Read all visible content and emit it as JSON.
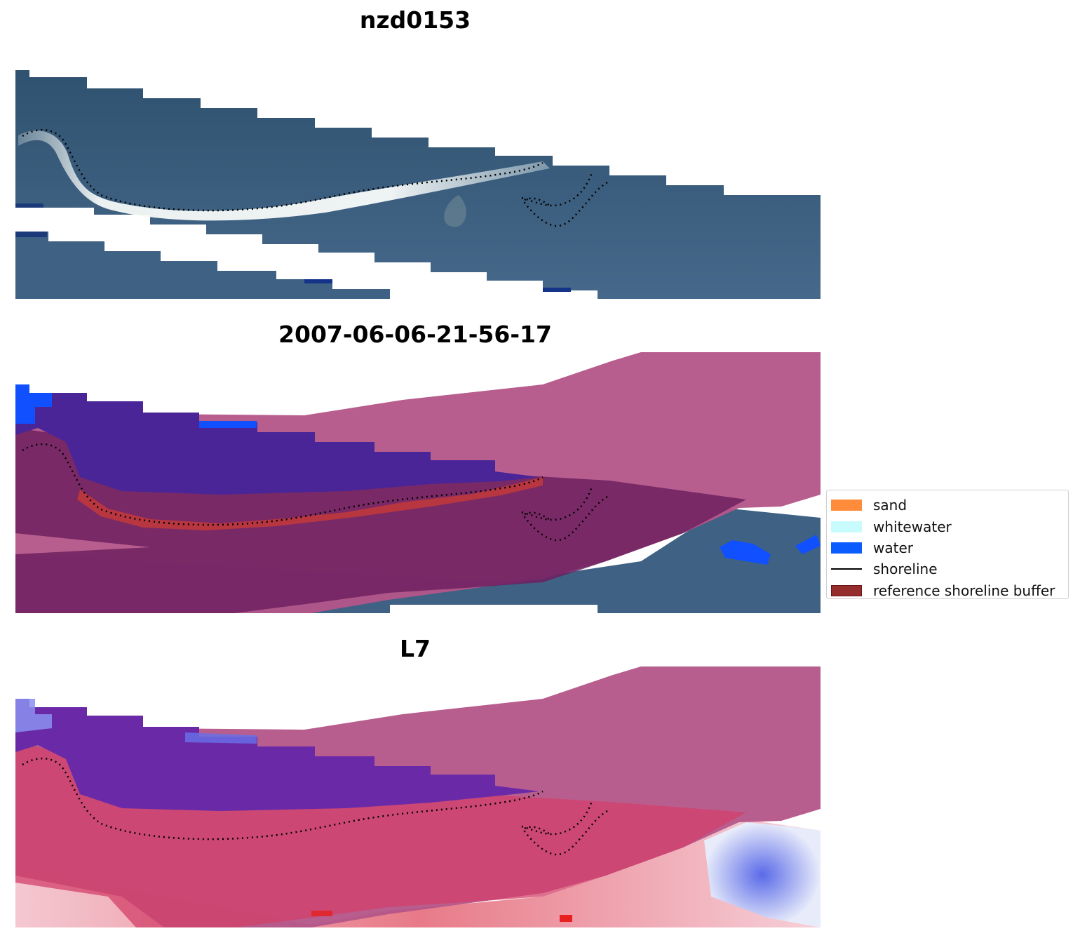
{
  "panels": [
    {
      "title": "nzd0153"
    },
    {
      "title": "2007-06-06-21-56-17"
    },
    {
      "title": "L7"
    }
  ],
  "legend": {
    "items": [
      {
        "label": "sand",
        "color": "#ff8c3a",
        "kind": "patch"
      },
      {
        "label": "whitewater",
        "color": "#c8fcfc",
        "kind": "patch"
      },
      {
        "label": "water",
        "color": "#0a5cff",
        "kind": "patch"
      },
      {
        "label": "shoreline",
        "color": "#000000",
        "kind": "line"
      },
      {
        "label": "reference shoreline buffer",
        "color": "#962d2d",
        "kind": "patch"
      }
    ]
  },
  "colors": {
    "ocean": "#3d5e80",
    "ocean_dark": "#27446a",
    "whitewater_band": "#e8f2f2",
    "buffer_overlay": "#b0457f",
    "water_class": "#0a5cff",
    "sand_class": "#c73a3a",
    "mndwi_blue": "#6a2aa8",
    "mndwi_red": "#d83a5a"
  }
}
